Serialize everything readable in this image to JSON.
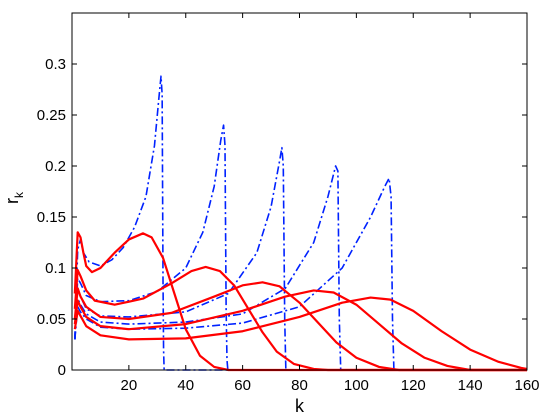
{
  "chart_data": {
    "type": "line",
    "xlabel": "k",
    "ylabel": {
      "main": "r",
      "sub": "k"
    },
    "xlim": [
      0,
      160
    ],
    "ylim": [
      0,
      0.35
    ],
    "xticks": [
      20,
      40,
      60,
      80,
      100,
      120,
      140,
      160
    ],
    "yticks": [
      0,
      0.05,
      0.1,
      0.15,
      0.2,
      0.25,
      0.3
    ],
    "xtick_labels": [
      "20",
      "40",
      "60",
      "80",
      "100",
      "120",
      "140",
      "160"
    ],
    "ytick_labels": [
      "0",
      "0.05",
      "0.1",
      "0.15",
      "0.2",
      "0.25",
      "0.3"
    ],
    "grid": false,
    "legend": "none",
    "colors": {
      "solid": "#ff0000",
      "dashdot": "#0022ff"
    },
    "series": [
      {
        "style": "dashdot",
        "points": [
          [
            1,
            0.03
          ],
          [
            2,
            0.118
          ],
          [
            3,
            0.128
          ],
          [
            4,
            0.115
          ],
          [
            6,
            0.106
          ],
          [
            10,
            0.102
          ],
          [
            14,
            0.108
          ],
          [
            18,
            0.12
          ],
          [
            22,
            0.14
          ],
          [
            26,
            0.17
          ],
          [
            29,
            0.22
          ],
          [
            30.5,
            0.265
          ],
          [
            31.3,
            0.288
          ],
          [
            31.7,
            0.27
          ],
          [
            32,
            0.09
          ],
          [
            32.2,
            0.02
          ],
          [
            32.4,
            0
          ],
          [
            160,
            0
          ]
        ]
      },
      {
        "style": "dashdot",
        "points": [
          [
            1,
            0.03
          ],
          [
            2,
            0.09
          ],
          [
            3,
            0.085
          ],
          [
            5,
            0.073
          ],
          [
            10,
            0.067
          ],
          [
            20,
            0.068
          ],
          [
            30,
            0.077
          ],
          [
            40,
            0.1
          ],
          [
            46,
            0.135
          ],
          [
            50,
            0.18
          ],
          [
            52.3,
            0.225
          ],
          [
            53.3,
            0.24
          ],
          [
            53.8,
            0.22
          ],
          [
            54.2,
            0.06
          ],
          [
            54.5,
            0.01
          ],
          [
            54.8,
            0
          ],
          [
            160,
            0
          ]
        ]
      },
      {
        "style": "dashdot",
        "points": [
          [
            1,
            0.03
          ],
          [
            2,
            0.08
          ],
          [
            3,
            0.072
          ],
          [
            5,
            0.06
          ],
          [
            10,
            0.053
          ],
          [
            20,
            0.052
          ],
          [
            40,
            0.057
          ],
          [
            55,
            0.075
          ],
          [
            65,
            0.115
          ],
          [
            70,
            0.16
          ],
          [
            73,
            0.205
          ],
          [
            73.8,
            0.218
          ],
          [
            74.3,
            0.2
          ],
          [
            74.8,
            0.05
          ],
          [
            75.2,
            0
          ],
          [
            160,
            0
          ]
        ]
      },
      {
        "style": "dashdot",
        "points": [
          [
            1,
            0.03
          ],
          [
            2,
            0.07
          ],
          [
            3,
            0.064
          ],
          [
            5,
            0.055
          ],
          [
            10,
            0.047
          ],
          [
            20,
            0.045
          ],
          [
            40,
            0.047
          ],
          [
            60,
            0.055
          ],
          [
            75,
            0.08
          ],
          [
            85,
            0.125
          ],
          [
            90,
            0.17
          ],
          [
            92.7,
            0.2
          ],
          [
            93.5,
            0.195
          ],
          [
            94,
            0.05
          ],
          [
            94.5,
            0
          ],
          [
            160,
            0
          ]
        ]
      },
      {
        "style": "dashdot",
        "points": [
          [
            1,
            0.03
          ],
          [
            2,
            0.062
          ],
          [
            3,
            0.057
          ],
          [
            5,
            0.05
          ],
          [
            10,
            0.042
          ],
          [
            20,
            0.04
          ],
          [
            40,
            0.041
          ],
          [
            60,
            0.046
          ],
          [
            80,
            0.062
          ],
          [
            95,
            0.1
          ],
          [
            105,
            0.15
          ],
          [
            110,
            0.18
          ],
          [
            111.5,
            0.188
          ],
          [
            112.2,
            0.17
          ],
          [
            112.7,
            0.05
          ],
          [
            113.2,
            0
          ],
          [
            160,
            0
          ]
        ]
      },
      {
        "style": "solid",
        "points": [
          [
            1,
            0.075
          ],
          [
            2,
            0.135
          ],
          [
            3,
            0.13
          ],
          [
            4,
            0.115
          ],
          [
            5,
            0.102
          ],
          [
            7,
            0.096
          ],
          [
            10,
            0.1
          ],
          [
            15,
            0.115
          ],
          [
            20,
            0.128
          ],
          [
            25,
            0.134
          ],
          [
            28,
            0.13
          ],
          [
            32,
            0.11
          ],
          [
            36,
            0.075
          ],
          [
            40,
            0.04
          ],
          [
            45,
            0.014
          ],
          [
            50,
            0.003
          ],
          [
            55,
            0
          ],
          [
            160,
            0
          ]
        ]
      },
      {
        "style": "solid",
        "points": [
          [
            1,
            0.06
          ],
          [
            2,
            0.098
          ],
          [
            3,
            0.092
          ],
          [
            5,
            0.078
          ],
          [
            8,
            0.068
          ],
          [
            15,
            0.064
          ],
          [
            25,
            0.07
          ],
          [
            35,
            0.085
          ],
          [
            42,
            0.097
          ],
          [
            47,
            0.101
          ],
          [
            52,
            0.097
          ],
          [
            57,
            0.083
          ],
          [
            62,
            0.06
          ],
          [
            67,
            0.037
          ],
          [
            72,
            0.018
          ],
          [
            78,
            0.006
          ],
          [
            85,
            0.001
          ],
          [
            90,
            0
          ],
          [
            160,
            0
          ]
        ]
      },
      {
        "style": "solid",
        "points": [
          [
            1,
            0.05
          ],
          [
            2,
            0.08
          ],
          [
            3,
            0.072
          ],
          [
            5,
            0.062
          ],
          [
            10,
            0.052
          ],
          [
            20,
            0.05
          ],
          [
            35,
            0.056
          ],
          [
            50,
            0.072
          ],
          [
            60,
            0.083
          ],
          [
            67,
            0.086
          ],
          [
            73,
            0.082
          ],
          [
            80,
            0.066
          ],
          [
            87,
            0.045
          ],
          [
            93,
            0.027
          ],
          [
            100,
            0.012
          ],
          [
            108,
            0.003
          ],
          [
            115,
            0
          ],
          [
            160,
            0
          ]
        ]
      },
      {
        "style": "solid",
        "points": [
          [
            1,
            0.045
          ],
          [
            2,
            0.068
          ],
          [
            3,
            0.062
          ],
          [
            5,
            0.052
          ],
          [
            10,
            0.043
          ],
          [
            20,
            0.04
          ],
          [
            40,
            0.045
          ],
          [
            60,
            0.058
          ],
          [
            75,
            0.072
          ],
          [
            85,
            0.078
          ],
          [
            92,
            0.076
          ],
          [
            100,
            0.064
          ],
          [
            108,
            0.045
          ],
          [
            116,
            0.026
          ],
          [
            124,
            0.012
          ],
          [
            132,
            0.004
          ],
          [
            140,
            0
          ],
          [
            160,
            0
          ]
        ]
      },
      {
        "style": "solid",
        "points": [
          [
            1,
            0.04
          ],
          [
            2,
            0.058
          ],
          [
            3,
            0.053
          ],
          [
            5,
            0.043
          ],
          [
            10,
            0.034
          ],
          [
            20,
            0.03
          ],
          [
            40,
            0.031
          ],
          [
            60,
            0.038
          ],
          [
            80,
            0.052
          ],
          [
            95,
            0.066
          ],
          [
            105,
            0.071
          ],
          [
            112,
            0.069
          ],
          [
            120,
            0.058
          ],
          [
            130,
            0.038
          ],
          [
            140,
            0.02
          ],
          [
            150,
            0.008
          ],
          [
            158,
            0.002
          ],
          [
            160,
            0.001
          ]
        ]
      }
    ]
  }
}
